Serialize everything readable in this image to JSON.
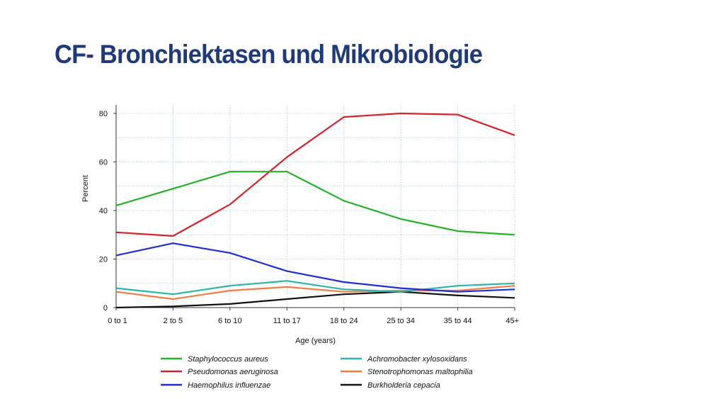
{
  "slide": {
    "title": "CF- Bronchiektasen und Mikrobiologie"
  },
  "chart_data": {
    "type": "line",
    "title": "",
    "xlabel": "Age (years)",
    "ylabel": "Percent",
    "ylim": [
      0,
      80
    ],
    "yticks": [
      0,
      20,
      40,
      60,
      80
    ],
    "grid": "horizontal and vertical, light blue dotted",
    "legend": "bottom, two columns",
    "categories": [
      "0 to 1",
      "2 to 5",
      "6 to 10",
      "11 to 17",
      "18 to 24",
      "25 to 34",
      "35 to 44",
      "45+"
    ],
    "series": [
      {
        "name": "Staphylococcus aureus",
        "color": "#22b322",
        "values": [
          42,
          49,
          56,
          56,
          44,
          36.5,
          31.5,
          30
        ]
      },
      {
        "name": "Pseudomonas aeruginosa",
        "color": "#d42328",
        "values": [
          31,
          29.5,
          42.5,
          62,
          78.5,
          80,
          79.5,
          71
        ]
      },
      {
        "name": "Haemophilus influenzae",
        "color": "#1f2fcf",
        "values": [
          21.5,
          26.5,
          22.5,
          15,
          10.5,
          8,
          6.5,
          7.5
        ]
      },
      {
        "name": "Achromobacter xylosoxidans",
        "color": "#2bb5a8",
        "values": [
          8,
          5.5,
          9,
          11,
          7.5,
          6.5,
          9,
          10
        ]
      },
      {
        "name": "Stenotrophomonas maltophilia",
        "color": "#f07d45",
        "values": [
          6.5,
          3.5,
          7,
          8.5,
          6.5,
          7,
          7,
          9
        ]
      },
      {
        "name": "Burkholderia cepacia",
        "color": "#111111",
        "values": [
          0,
          0.5,
          1.5,
          3.5,
          5.5,
          6.5,
          5,
          4
        ]
      }
    ]
  }
}
